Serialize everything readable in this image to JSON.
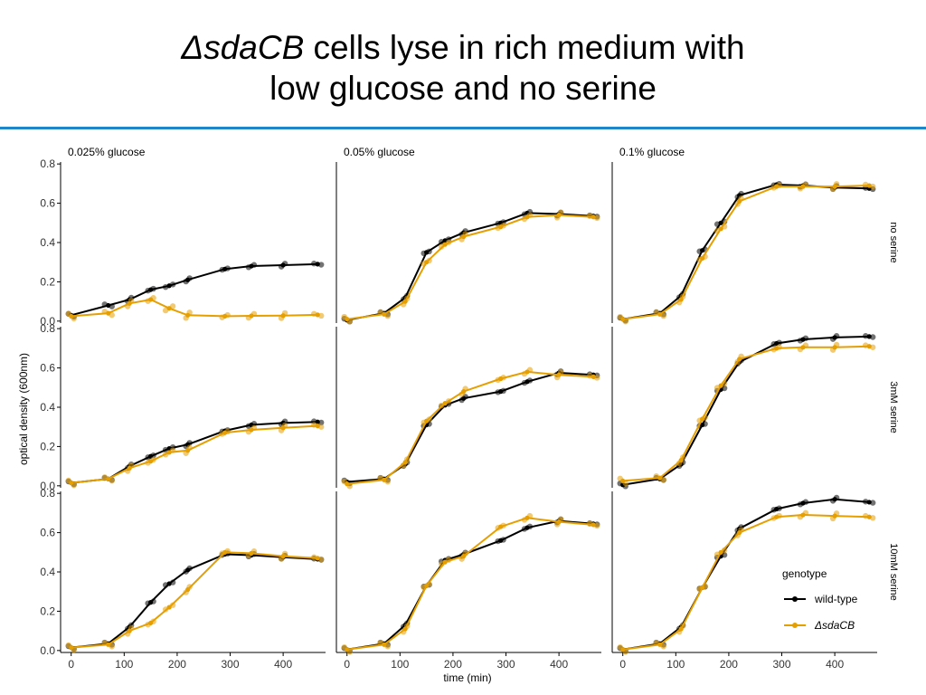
{
  "slide": {
    "title_italic": "ΔsdaCB",
    "title_line1_rest": " cells lyse in rich medium with",
    "title_line2": "low glucose and no serine"
  },
  "colors": {
    "wild_type": "#000000",
    "sdaCB": "#E69F00",
    "accent_rule": "#1f86c8"
  },
  "chart_data": {
    "type": "line",
    "xlabel": "time (min)",
    "ylabel": "optical density (600nm)",
    "xlim": [
      -20,
      480
    ],
    "ylim": [
      -0.01,
      0.81
    ],
    "xticks": [
      0,
      100,
      200,
      300,
      400
    ],
    "yticks": [
      0.0,
      0.2,
      0.4,
      0.6,
      0.8
    ],
    "columns": [
      "0.025% glucose",
      "0.05% glucose",
      "0.1% glucose"
    ],
    "rows": [
      "no serine",
      "3mM serine",
      "10mM serine"
    ],
    "legend": {
      "title": "genotype",
      "placement": "bottom-right",
      "items": [
        "wild-type",
        "ΔsdaCB"
      ]
    },
    "x": [
      0,
      70,
      110,
      150,
      185,
      220,
      290,
      340,
      400,
      465
    ],
    "panels": [
      {
        "col": "0.025% glucose",
        "row": "no serine",
        "series": [
          {
            "name": "wild-type",
            "values": [
              0.03,
              0.08,
              0.11,
              0.16,
              0.18,
              0.21,
              0.265,
              0.28,
              0.285,
              0.29
            ]
          },
          {
            "name": "ΔsdaCB",
            "values": [
              0.025,
              0.04,
              0.09,
              0.11,
              0.065,
              0.03,
              0.025,
              0.027,
              0.028,
              0.032
            ]
          }
        ]
      },
      {
        "col": "0.05% glucose",
        "row": "no serine",
        "series": [
          {
            "name": "wild-type",
            "values": [
              0.005,
              0.04,
              0.12,
              0.35,
              0.41,
              0.45,
              0.5,
              0.55,
              0.545,
              0.535
            ]
          },
          {
            "name": "ΔsdaCB",
            "values": [
              0.01,
              0.035,
              0.1,
              0.3,
              0.39,
              0.43,
              0.48,
              0.53,
              0.54,
              0.53
            ]
          }
        ]
      },
      {
        "col": "0.1% glucose",
        "row": "no serine",
        "series": [
          {
            "name": "wild-type",
            "values": [
              0.01,
              0.04,
              0.13,
              0.36,
              0.5,
              0.64,
              0.695,
              0.69,
              0.68,
              0.675
            ]
          },
          {
            "name": "ΔsdaCB",
            "values": [
              0.01,
              0.035,
              0.11,
              0.32,
              0.47,
              0.61,
              0.685,
              0.685,
              0.685,
              0.69
            ]
          }
        ]
      },
      {
        "col": "0.025% glucose",
        "row": "3mM serine",
        "series": [
          {
            "name": "wild-type",
            "values": [
              0.015,
              0.035,
              0.1,
              0.15,
              0.19,
              0.21,
              0.28,
              0.31,
              0.32,
              0.325
            ]
          },
          {
            "name": "ΔsdaCB",
            "values": [
              0.015,
              0.035,
              0.09,
              0.125,
              0.17,
              0.18,
              0.27,
              0.285,
              0.295,
              0.305
            ]
          }
        ]
      },
      {
        "col": "0.05% glucose",
        "row": "3mM serine",
        "series": [
          {
            "name": "wild-type",
            "values": [
              0.02,
              0.035,
              0.11,
              0.31,
              0.41,
              0.445,
              0.48,
              0.53,
              0.575,
              0.565
            ]
          },
          {
            "name": "ΔsdaCB",
            "values": [
              0.01,
              0.03,
              0.12,
              0.33,
              0.42,
              0.48,
              0.545,
              0.58,
              0.565,
              0.555
            ]
          }
        ]
      },
      {
        "col": "0.1% glucose",
        "row": "3mM serine",
        "series": [
          {
            "name": "wild-type",
            "values": [
              0.005,
              0.035,
              0.11,
              0.31,
              0.49,
              0.63,
              0.725,
              0.745,
              0.755,
              0.76
            ]
          },
          {
            "name": "ΔsdaCB",
            "values": [
              0.025,
              0.04,
              0.13,
              0.34,
              0.51,
              0.645,
              0.7,
              0.705,
              0.705,
              0.71
            ]
          }
        ]
      },
      {
        "col": "0.025% glucose",
        "row": "10mM serine",
        "series": [
          {
            "name": "wild-type",
            "values": [
              0.015,
              0.035,
              0.12,
              0.245,
              0.34,
              0.41,
              0.49,
              0.485,
              0.475,
              0.465
            ]
          },
          {
            "name": "ΔsdaCB",
            "values": [
              0.015,
              0.03,
              0.1,
              0.14,
              0.22,
              0.31,
              0.5,
              0.495,
              0.48,
              0.47
            ]
          }
        ]
      },
      {
        "col": "0.05% glucose",
        "row": "10mM serine",
        "series": [
          {
            "name": "wild-type",
            "values": [
              0.005,
              0.035,
              0.13,
              0.33,
              0.46,
              0.49,
              0.56,
              0.625,
              0.66,
              0.645
            ]
          },
          {
            "name": "ΔsdaCB",
            "values": [
              0.005,
              0.03,
              0.11,
              0.33,
              0.45,
              0.48,
              0.63,
              0.675,
              0.655,
              0.64
            ]
          }
        ]
      },
      {
        "col": "0.1% glucose",
        "row": "10mM serine",
        "series": [
          {
            "name": "wild-type",
            "values": [
              0.005,
              0.035,
              0.12,
              0.32,
              0.48,
              0.62,
              0.72,
              0.75,
              0.77,
              0.755
            ]
          },
          {
            "name": "ΔsdaCB",
            "values": [
              0.005,
              0.03,
              0.11,
              0.32,
              0.5,
              0.6,
              0.68,
              0.69,
              0.685,
              0.68
            ]
          }
        ]
      }
    ]
  }
}
